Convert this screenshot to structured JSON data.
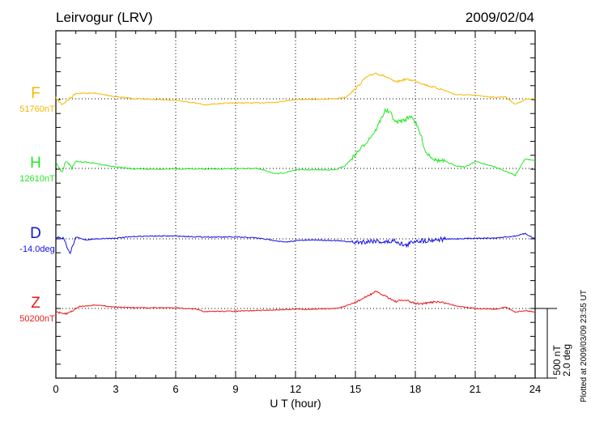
{
  "chart_data": {
    "type": "line",
    "title": "Leirvogur (LRV)",
    "date": "2009/02/04",
    "xlabel": "U T (hour)",
    "xlim": [
      0,
      24
    ],
    "xticks": [
      "0",
      "3",
      "6",
      "9",
      "12",
      "15",
      "18",
      "21",
      "24"
    ],
    "scale_bar": {
      "nT": "500 nT",
      "deg": "2.0 deg"
    },
    "footer": "Plotted at 2009/03/09 23:55 UT",
    "grid": "dotted",
    "series": [
      {
        "name": "F",
        "baseline_label": "51760nT",
        "color": "#f5b800",
        "unit": "nT",
        "x": [
          0,
          0.3,
          0.6,
          1,
          1.5,
          2,
          3,
          4,
          5,
          6,
          7,
          7.5,
          8,
          9,
          10,
          11,
          12,
          13,
          14,
          14.5,
          15,
          15.5,
          16,
          16.5,
          17,
          17.5,
          18,
          18.5,
          19,
          19.5,
          20,
          21,
          22,
          22.5,
          23,
          23.5,
          24
        ],
        "values": [
          5,
          -40,
          -10,
          40,
          40,
          40,
          15,
          0,
          -5,
          -10,
          -30,
          -45,
          -35,
          -30,
          -30,
          -25,
          -5,
          -5,
          0,
          10,
          70,
          150,
          185,
          160,
          120,
          140,
          130,
          100,
          80,
          60,
          30,
          25,
          10,
          15,
          -40,
          -5,
          0
        ]
      },
      {
        "name": "H",
        "baseline_label": "12610nT",
        "color": "#22e822",
        "unit": "nT",
        "x": [
          0,
          0.3,
          0.5,
          0.8,
          1,
          1.5,
          2,
          3,
          4,
          5,
          6,
          7,
          8,
          9,
          10,
          10.5,
          11,
          11.5,
          12,
          13,
          14,
          14.5,
          15,
          15.5,
          16,
          16.5,
          16.8,
          17,
          17.5,
          17.8,
          18,
          18.3,
          18.5,
          19,
          19.5,
          20,
          20.5,
          21,
          21.5,
          22,
          22.5,
          23,
          23.5,
          24
        ],
        "values": [
          40,
          -30,
          60,
          0,
          50,
          45,
          35,
          10,
          -5,
          -5,
          -3,
          -5,
          -5,
          -2,
          0,
          -15,
          -40,
          -30,
          -10,
          -10,
          -10,
          20,
          100,
          180,
          270,
          420,
          390,
          330,
          350,
          380,
          330,
          230,
          120,
          60,
          50,
          20,
          10,
          50,
          30,
          10,
          -20,
          -50,
          70,
          55
        ]
      },
      {
        "name": "D",
        "baseline_label": "-14.0deg",
        "color": "#1010e8",
        "unit": "deg",
        "x": [
          0,
          0.4,
          0.7,
          1,
          1.5,
          2,
          3,
          4,
          5,
          6,
          7,
          8,
          9,
          10,
          11,
          11.5,
          12,
          13,
          14,
          15,
          15.5,
          16,
          16.5,
          17,
          17.5,
          18,
          18.5,
          19,
          20,
          21,
          22,
          23,
          23.5,
          24
        ],
        "values": [
          0.05,
          0.02,
          -0.45,
          0.05,
          -0.03,
          0,
          0.02,
          0.07,
          0.08,
          0.08,
          0.06,
          0.05,
          0.05,
          0.03,
          -0.05,
          -0.1,
          -0.05,
          -0.03,
          -0.05,
          -0.1,
          -0.08,
          -0.05,
          -0.1,
          -0.05,
          -0.2,
          -0.05,
          -0.05,
          -0.02,
          0,
          0.02,
          0.02,
          0.08,
          0.15,
          0
        ]
      },
      {
        "name": "Z",
        "baseline_label": "50200nT",
        "color": "#e81818",
        "unit": "nT",
        "x": [
          0,
          0.3,
          0.6,
          0.9,
          1.2,
          2,
          3,
          4,
          5,
          6,
          7,
          7.5,
          8,
          9,
          10,
          11,
          12,
          13,
          14,
          14.5,
          15,
          15.5,
          16,
          16.5,
          17,
          17.5,
          18,
          18.5,
          19,
          19.5,
          20,
          21,
          22,
          22.5,
          23,
          23.5,
          24
        ],
        "values": [
          -20,
          -40,
          -35,
          -10,
          15,
          25,
          10,
          5,
          5,
          5,
          -5,
          -25,
          -20,
          -20,
          -15,
          -10,
          -5,
          -5,
          0,
          15,
          45,
          80,
          120,
          90,
          50,
          60,
          35,
          35,
          50,
          40,
          20,
          0,
          -5,
          10,
          -25,
          -15,
          -25
        ]
      }
    ]
  }
}
